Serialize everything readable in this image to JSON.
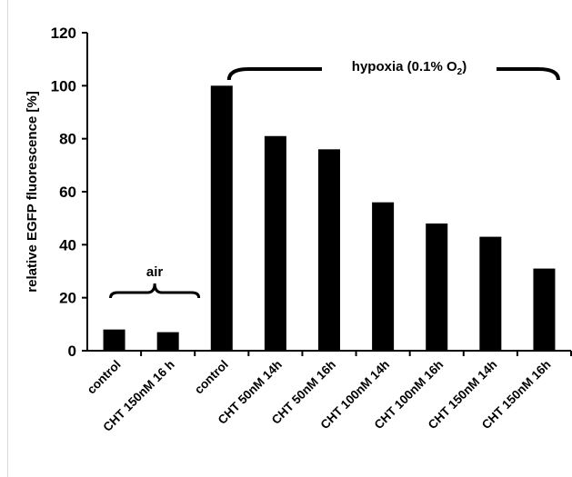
{
  "chart_data": {
    "type": "bar",
    "title": "",
    "ylabel": "relative EGFP fluorescence [%]",
    "xlabel": "",
    "ylim": [
      0,
      120
    ],
    "yticks": [
      0,
      20,
      40,
      60,
      80,
      100,
      120
    ],
    "categories": [
      "control",
      "CHT 150nM 16 h",
      "control",
      "CHT 50nM 14h",
      "CHT 50nM 16h",
      "CHT 100nM 14h",
      "CHT 100nM 16h",
      "CHT 150nM 14h",
      "CHT 150nM 16h"
    ],
    "values": [
      8,
      7,
      100,
      81,
      76,
      56,
      48,
      43,
      31
    ],
    "bar_color": "#000000",
    "grid": false,
    "legend": "none",
    "annotations": {
      "air": "air",
      "hypoxia": "hypoxia (0.1% O",
      "hypoxia_sub": "2",
      "hypoxia_close": ")"
    }
  }
}
